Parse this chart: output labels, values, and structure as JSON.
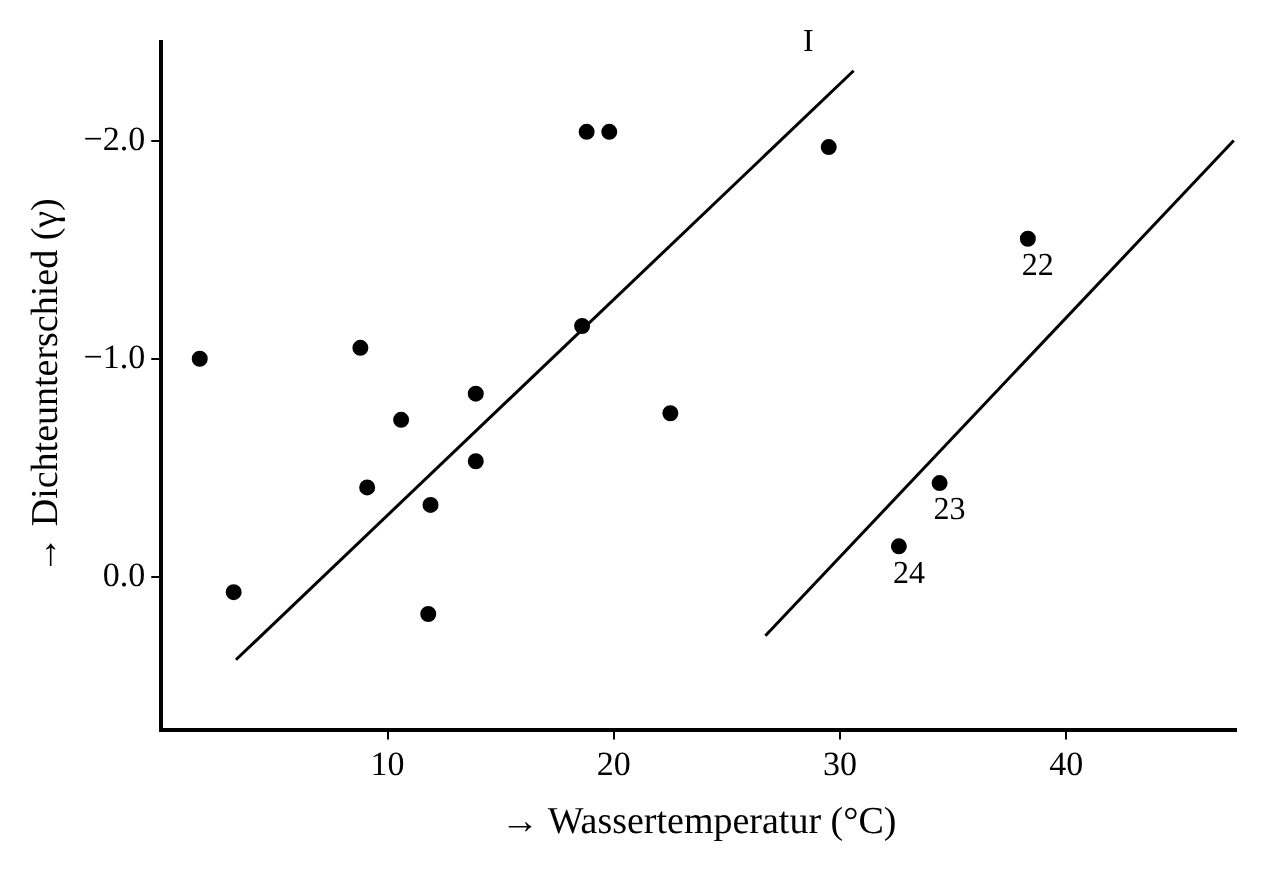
{
  "chart_data": {
    "type": "scatter",
    "xlabel": "→ Wassertemperatur (°C)",
    "ylabel": "→ Dichteunterschied (γ)",
    "xlim": [
      0,
      47.5
    ],
    "xticks": [
      10,
      20,
      30,
      40
    ],
    "ylim": [
      0.7,
      -2.45
    ],
    "yticks": [
      {
        "value": -2,
        "label": "−2.0"
      },
      {
        "value": -1,
        "label": "−1.0"
      },
      {
        "value": 0,
        "label": "0.0"
      }
    ],
    "series": [
      {
        "color": "#000000",
        "marker": "circle",
        "x": [
          1.7,
          3.2,
          8.8,
          9.1,
          10.6,
          11.9,
          11.8,
          13.9,
          13.9,
          18.6,
          18.8,
          19.8,
          29.5,
          22.5,
          38.3,
          34.4,
          32.6
        ],
        "values": [
          -1.0,
          0.07,
          -1.05,
          -0.41,
          -0.72,
          -0.33,
          0.17,
          -0.84,
          -0.53,
          -1.15,
          -2.04,
          -2.04,
          -1.97,
          -0.75,
          -1.55,
          -0.43,
          -0.14
        ]
      },
      {
        "type": "line",
        "color": "#000000",
        "marker": "none",
        "line_style": "solid",
        "x": [
          3.3,
          30.6
        ],
        "values": [
          0.38,
          -2.32
        ]
      },
      {
        "type": "line",
        "color": "#000000",
        "marker": "none",
        "line_style": "solid",
        "x": [
          26.7,
          47.4
        ],
        "values": [
          0.27,
          -2.0
        ]
      }
    ],
    "annotations": [
      {
        "text": "I",
        "x": 30.6,
        "y": -2.32
      },
      {
        "text": "22",
        "x": 38.3,
        "y": -1.55
      },
      {
        "text": "23",
        "x": 34.4,
        "y": -0.43
      },
      {
        "text": "24",
        "x": 32.6,
        "y": -0.14
      }
    ]
  }
}
